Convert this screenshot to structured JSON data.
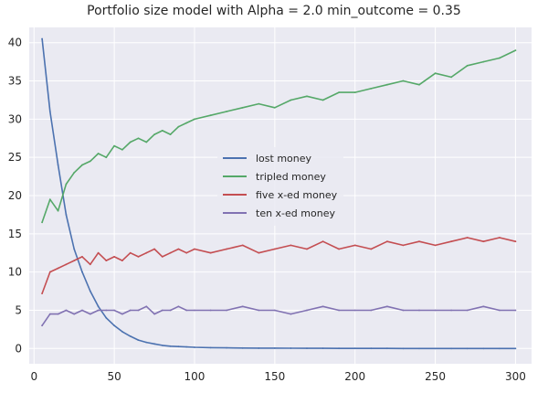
{
  "chart_data": {
    "type": "line",
    "title": "Portfolio size model with Alpha = 2.0 min_outcome = 0.35",
    "xlabel": "",
    "ylabel": "",
    "xlim": [
      -3,
      310
    ],
    "ylim": [
      -2,
      42
    ],
    "x_ticks": [
      0,
      50,
      100,
      150,
      200,
      250,
      300
    ],
    "y_ticks": [
      0,
      5,
      10,
      15,
      20,
      25,
      30,
      35,
      40
    ],
    "grid": true,
    "legend_position": "center",
    "x": [
      5,
      10,
      15,
      20,
      25,
      30,
      35,
      40,
      45,
      50,
      55,
      60,
      65,
      70,
      75,
      80,
      85,
      90,
      95,
      100,
      110,
      120,
      130,
      140,
      150,
      160,
      170,
      180,
      190,
      200,
      210,
      220,
      230,
      240,
      250,
      260,
      270,
      280,
      290,
      300
    ],
    "series": [
      {
        "name": "lost money",
        "color": "#4c72b0",
        "values": [
          40.5,
          31,
          24,
          17.5,
          13,
          10,
          7.5,
          5.5,
          4,
          3,
          2.2,
          1.6,
          1.1,
          0.8,
          0.6,
          0.4,
          0.3,
          0.25,
          0.2,
          0.15,
          0.1,
          0.08,
          0.06,
          0.05,
          0.04,
          0.03,
          0.02,
          0.02,
          0.01,
          0.01,
          0.01,
          0.01,
          0,
          0,
          0,
          0,
          0,
          0,
          0,
          0
        ]
      },
      {
        "name": "tripled money",
        "color": "#55a868",
        "values": [
          16.5,
          19.5,
          18,
          21.5,
          23,
          24,
          24.5,
          25.5,
          25,
          26.5,
          26,
          27,
          27.5,
          27,
          28,
          28.5,
          28,
          29,
          29.5,
          30,
          30.5,
          31,
          31.5,
          32,
          31.5,
          32.5,
          33,
          32.5,
          33.5,
          33.5,
          34,
          34.5,
          35,
          34.5,
          36,
          35.5,
          37,
          37.5,
          38,
          39
        ]
      },
      {
        "name": "five x-ed money",
        "color": "#c44e52",
        "values": [
          7.2,
          10,
          10.5,
          11,
          11.5,
          12,
          11,
          12.5,
          11.5,
          12,
          11.5,
          12.5,
          12,
          12.5,
          13,
          12,
          12.5,
          13,
          12.5,
          13,
          12.5,
          13,
          13.5,
          12.5,
          13,
          13.5,
          13,
          14,
          13,
          13.5,
          13,
          14,
          13.5,
          14,
          13.5,
          14,
          14.5,
          14,
          14.5,
          14
        ]
      },
      {
        "name": "ten x-ed money",
        "color": "#8172b2",
        "values": [
          3,
          4.5,
          4.5,
          5,
          4.5,
          5,
          4.5,
          5,
          5,
          5,
          4.5,
          5,
          5,
          5.5,
          4.5,
          5,
          5,
          5.5,
          5,
          5,
          5,
          5,
          5.5,
          5,
          5,
          4.5,
          5,
          5.5,
          5,
          5,
          5,
          5.5,
          5,
          5,
          5,
          5,
          5,
          5.5,
          5,
          5
        ]
      }
    ]
  }
}
